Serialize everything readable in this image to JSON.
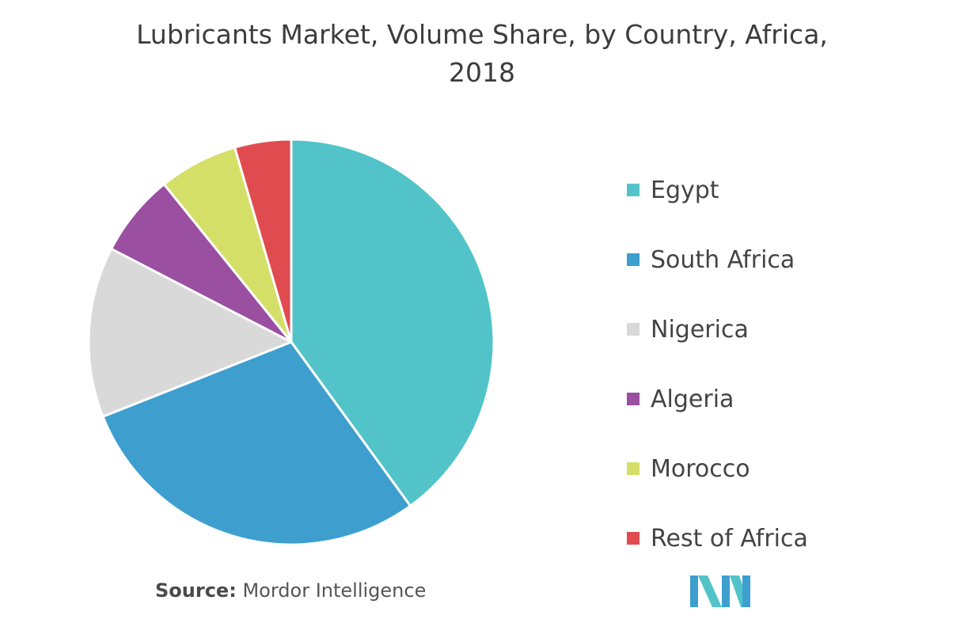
{
  "chart_data": {
    "type": "pie",
    "title": "Lubricants Market, Volume Share, by Country, Africa, 2018",
    "title_lines": [
      "Lubricants Market, Volume Share, by Country, Africa,",
      "2018"
    ],
    "categories": [
      "Egypt",
      "South Africa",
      "Nigerica",
      "Algeria",
      "Morocco",
      "Rest of Africa"
    ],
    "values": [
      40,
      29,
      13.6,
      6.6,
      6.3,
      4.5
    ],
    "colors": [
      "#52c4c9",
      "#3e9fcf",
      "#d9d9d9",
      "#9a4fa0",
      "#d4df68",
      "#e04b4f"
    ],
    "legend_position": "right",
    "start_angle": "top, clockwise"
  },
  "source": {
    "label": "Source:",
    "text": "Mordor Intelligence"
  },
  "logo": {
    "icon": "mordor-intelligence-logo-icon",
    "colors": [
      "#3e9fcf",
      "#52c4c9"
    ]
  }
}
